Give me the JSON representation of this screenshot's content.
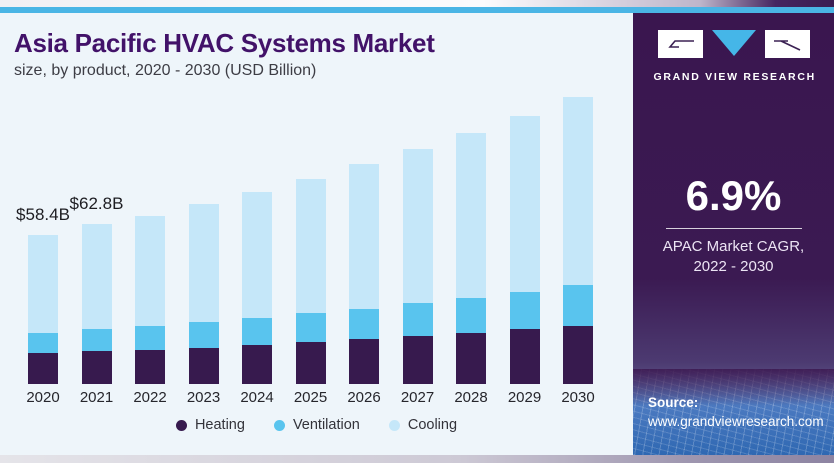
{
  "header": {
    "title": "Asia Pacific HVAC Systems Market",
    "subtitle": "size, by product, 2020 - 2030 (USD Billion)"
  },
  "chart_data": {
    "type": "bar",
    "stacked": true,
    "title": "Asia Pacific HVAC Systems Market size, by product, 2020 - 2030 (USD Billion)",
    "categories": [
      "2020",
      "2021",
      "2022",
      "2023",
      "2024",
      "2025",
      "2026",
      "2027",
      "2028",
      "2029",
      "2030"
    ],
    "series": [
      {
        "name": "Heating",
        "color": "#371a4e",
        "values": [
          12.0,
          12.8,
          13.4,
          14.3,
          15.3,
          16.4,
          17.5,
          18.7,
          20.0,
          21.4,
          22.9
        ]
      },
      {
        "name": "Ventilation",
        "color": "#59c4ee",
        "values": [
          8.2,
          8.8,
          9.3,
          9.9,
          10.6,
          11.3,
          12.1,
          12.9,
          13.8,
          14.8,
          15.8
        ]
      },
      {
        "name": "Cooling",
        "color": "#c5e7f9",
        "values": [
          38.2,
          41.2,
          43.3,
          46.3,
          49.5,
          52.9,
          56.6,
          60.5,
          64.7,
          69.1,
          73.8
        ]
      }
    ],
    "totals": [
      58.4,
      62.8,
      66.0,
      70.5,
      75.4,
      80.6,
      86.2,
      92.1,
      98.5,
      105.3,
      112.5
    ],
    "annotations": [
      {
        "index": 0,
        "category": "2020",
        "label": "$58.4B"
      },
      {
        "index": 1,
        "category": "2021",
        "label": "$62.8B"
      }
    ],
    "xlabel": "",
    "ylabel": "USD Billion",
    "ylim": [
      0,
      115
    ],
    "grid": false,
    "legend_position": "bottom"
  },
  "sidebar": {
    "brand": "GRAND VIEW RESEARCH",
    "cagr_value": "6.9%",
    "cagr_label_line1": "APAC Market CAGR,",
    "cagr_label_line2": "2022 - 2030",
    "source_label": "Source:",
    "source_url": "www.grandviewresearch.com"
  },
  "colors": {
    "accent_cyan": "#4ab5e5",
    "panel_purple": "#3a164f",
    "title_purple": "#421269",
    "chart_background": "#eef5fa",
    "heating": "#371a4e",
    "ventilation": "#59c4ee",
    "cooling": "#c5e7f9"
  }
}
